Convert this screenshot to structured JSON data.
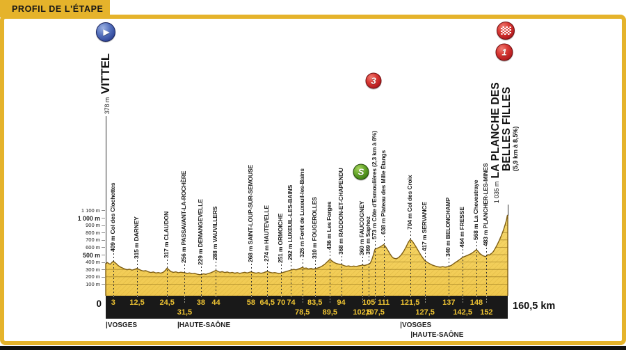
{
  "banner": {
    "title": "PROFIL DE L'ÉTAPE"
  },
  "colors": {
    "accent_yellow": "#E5B32B",
    "profile_fill": "#F0C84E",
    "profile_fill_light": "#F6D96E",
    "profile_edge": "#7E5E14",
    "grid_in_profile": "#C79F2E",
    "bar_background": "#191919",
    "bar_text": "#EFC433",
    "category_red": "#C8242B",
    "sprint_green": "#4E8F1F",
    "start_blue": "#32499B"
  },
  "start": {
    "elevation": "378 m",
    "name": "VITTEL"
  },
  "finish": {
    "elevation": "1 035 m",
    "name_line1": "LA PLANCHE DES",
    "name_line2": "BELLES FILLES",
    "gradient_note": "(5,9 km à 8,5%)"
  },
  "icons": {
    "start_glyph": "▶",
    "cat1_label": "1",
    "cat3_label": "3",
    "sprint_label": "S"
  },
  "yaxis": {
    "zero": "0",
    "labels": [
      {
        "text": "1 100 m",
        "m": 1100,
        "bold": false
      },
      {
        "text": "1 000 m",
        "m": 1000,
        "bold": true
      },
      {
        "text": "900 m",
        "m": 900,
        "bold": false
      },
      {
        "text": "800 m",
        "m": 800,
        "bold": false
      },
      {
        "text": "700 m",
        "m": 700,
        "bold": false
      },
      {
        "text": "600 m",
        "m": 600,
        "bold": false
      },
      {
        "text": "500 m",
        "m": 500,
        "bold": true
      },
      {
        "text": "400 m",
        "m": 400,
        "bold": false
      },
      {
        "text": "300 m",
        "m": 300,
        "bold": false
      },
      {
        "text": "200 m",
        "m": 200,
        "bold": false
      },
      {
        "text": "100 m",
        "m": 100,
        "bold": false
      }
    ]
  },
  "xaxis": {
    "total": "160,5 km",
    "ticks": [
      {
        "label": "3",
        "km": 3,
        "row": 1
      },
      {
        "label": "12,5",
        "km": 12.5,
        "row": 1
      },
      {
        "label": "24,5",
        "km": 24.5,
        "row": 1
      },
      {
        "label": "31,5",
        "km": 31.5,
        "row": 2
      },
      {
        "label": "38",
        "km": 38,
        "row": 1
      },
      {
        "label": "44",
        "km": 44,
        "row": 1
      },
      {
        "label": "58",
        "km": 58,
        "row": 1
      },
      {
        "label": "64,5",
        "km": 64.5,
        "row": 1
      },
      {
        "label": "70",
        "km": 70,
        "row": 1
      },
      {
        "label": "74",
        "km": 74,
        "row": 1
      },
      {
        "label": "78,5",
        "km": 78.5,
        "row": 2
      },
      {
        "label": "83,5",
        "km": 83.5,
        "row": 1
      },
      {
        "label": "89,5",
        "km": 89.5,
        "row": 2
      },
      {
        "label": "94",
        "km": 94,
        "row": 1
      },
      {
        "label": "102,5",
        "km": 102.5,
        "row": 2
      },
      {
        "label": "105",
        "km": 105,
        "row": 1
      },
      {
        "label": "107,5",
        "km": 107.5,
        "row": 2
      },
      {
        "label": "111",
        "km": 111,
        "row": 1
      },
      {
        "label": "121,5",
        "km": 121.5,
        "row": 1
      },
      {
        "label": "127,5",
        "km": 127.5,
        "row": 2
      },
      {
        "label": "137",
        "km": 137,
        "row": 1
      },
      {
        "label": "142,5",
        "km": 142.5,
        "row": 2
      },
      {
        "label": "148",
        "km": 148,
        "row": 1
      },
      {
        "label": "152",
        "km": 152,
        "row": 2
      }
    ]
  },
  "departments": [
    {
      "label": "|VOSGES",
      "km": 0,
      "row": 1
    },
    {
      "label": "|HAUTE-SAÔNE",
      "km": 28.6,
      "row": 1
    },
    {
      "label": "|VOSGES",
      "km": 117.5,
      "row": 1
    },
    {
      "label": "|HAUTE-SAÔNE",
      "km": 121.7,
      "row": 2
    }
  ],
  "chart_data": {
    "type": "area",
    "title": "PROFIL DE L'ÉTAPE",
    "xlabel": "km",
    "ylabel": "m",
    "xlim": [
      0,
      160.5
    ],
    "ylim": [
      0,
      1150
    ],
    "total_distance_km": 160.5,
    "start": {
      "name": "VITTEL",
      "elevation_m": 378,
      "km": 0
    },
    "finish": {
      "name": "LA PLANCHE DES BELLES FILLES",
      "elevation_m": 1035,
      "km": 160.5,
      "climb": "5,9 km à 8,5%",
      "category": "1"
    },
    "waypoints": [
      {
        "km": 3,
        "elev": 409,
        "elev_label": "409 m",
        "name": "Col des Clochettes"
      },
      {
        "km": 12.5,
        "elev": 315,
        "elev_label": "315 m",
        "name": "DARNEY"
      },
      {
        "km": 24.5,
        "elev": 317,
        "elev_label": "317 m",
        "name": "CLAUDON"
      },
      {
        "km": 31.5,
        "elev": 256,
        "elev_label": "256 m",
        "name": "PASSAVANT-LA-ROCHÈRE"
      },
      {
        "km": 38,
        "elev": 229,
        "elev_label": "229 m",
        "name": "DEMANGEVELLE"
      },
      {
        "km": 44,
        "elev": 288,
        "elev_label": "288 m",
        "name": "VAUVILLERS"
      },
      {
        "km": 58,
        "elev": 268,
        "elev_label": "268 m",
        "name": "SAINT-LOUP-SUR-SEMOUSE"
      },
      {
        "km": 64.5,
        "elev": 274,
        "elev_label": "274 m",
        "name": "HAUTEVELLE"
      },
      {
        "km": 70,
        "elev": 251,
        "elev_label": "251 m",
        "name": "ORMOICHE"
      },
      {
        "km": 74,
        "elev": 292,
        "elev_label": "292 m",
        "name": "LUXEUIL-LES-BAINS"
      },
      {
        "km": 78.5,
        "elev": 326,
        "elev_label": "326 m",
        "name": "Forêt de Luxeuil-les-Bains"
      },
      {
        "km": 83.5,
        "elev": 310,
        "elev_label": "310 m",
        "name": "FOUGEROLLES"
      },
      {
        "km": 89.5,
        "elev": 436,
        "elev_label": "436 m",
        "name": "Les Forges"
      },
      {
        "km": 94,
        "elev": 368,
        "elev_label": "368 m",
        "name": "RADDON-ET-CHAPENDU"
      },
      {
        "km": 102.5,
        "elev": 360,
        "elev_label": "360 m",
        "name": "FAUCOGNEY",
        "badge": "sprint"
      },
      {
        "km": 105,
        "elev": 369,
        "elev_label": "369 m",
        "name": "Saphoz"
      },
      {
        "km": 107.5,
        "elev": 573,
        "elev_label": "573 m",
        "name": "Côte d'Esmoulières",
        "suffix": "(2,3 km à 8%)",
        "badge": "cat3"
      },
      {
        "km": 111,
        "elev": 638,
        "elev_label": "638 m",
        "name": "Plateau des Mille Étangs"
      },
      {
        "km": 121.5,
        "elev": 704,
        "elev_label": "704 m",
        "name": "Col des Croix"
      },
      {
        "km": 127.5,
        "elev": 417,
        "elev_label": "417 m",
        "name": "SERVANCE"
      },
      {
        "km": 137,
        "elev": 340,
        "elev_label": "340 m",
        "name": "BELONCHAMP"
      },
      {
        "km": 142.5,
        "elev": 464,
        "elev_label": "464 m",
        "name": "FRESSE"
      },
      {
        "km": 148,
        "elev": 568,
        "elev_label": "568 m",
        "name": "La Chevestraye"
      },
      {
        "km": 152,
        "elev": 483,
        "elev_label": "483 m",
        "name": "PLANCHER-LES-MINES"
      }
    ],
    "profile": [
      [
        0,
        378
      ],
      [
        0.7,
        392
      ],
      [
        1.2,
        380
      ],
      [
        1.8,
        370
      ],
      [
        2.4,
        392
      ],
      [
        3,
        409
      ],
      [
        3.6,
        396
      ],
      [
        4.2,
        378
      ],
      [
        5,
        352
      ],
      [
        6,
        330
      ],
      [
        7.5,
        308
      ],
      [
        8.5,
        296
      ],
      [
        9.5,
        303
      ],
      [
        10.5,
        291
      ],
      [
        11.5,
        300
      ],
      [
        12.5,
        315
      ],
      [
        13.2,
        302
      ],
      [
        14,
        290
      ],
      [
        15,
        278
      ],
      [
        16,
        283
      ],
      [
        17,
        268
      ],
      [
        18,
        258
      ],
      [
        19,
        265
      ],
      [
        20,
        252
      ],
      [
        21,
        258
      ],
      [
        22,
        250
      ],
      [
        23,
        262
      ],
      [
        23.8,
        288
      ],
      [
        24.5,
        317
      ],
      [
        25.2,
        295
      ],
      [
        26,
        272
      ],
      [
        27,
        260
      ],
      [
        28,
        267
      ],
      [
        29,
        256
      ],
      [
        30,
        262
      ],
      [
        31.5,
        256
      ],
      [
        32.5,
        247
      ],
      [
        33.5,
        253
      ],
      [
        34.5,
        242
      ],
      [
        35.5,
        247
      ],
      [
        36.5,
        236
      ],
      [
        37.2,
        230
      ],
      [
        38,
        229
      ],
      [
        39,
        240
      ],
      [
        40,
        234
      ],
      [
        41,
        245
      ],
      [
        42,
        256
      ],
      [
        43,
        272
      ],
      [
        44,
        288
      ],
      [
        44.8,
        274
      ],
      [
        45.6,
        263
      ],
      [
        46.5,
        270
      ],
      [
        47.5,
        258
      ],
      [
        48.5,
        265
      ],
      [
        49.5,
        253
      ],
      [
        50.5,
        259
      ],
      [
        51.5,
        249
      ],
      [
        52.5,
        257
      ],
      [
        53.5,
        247
      ],
      [
        54.5,
        255
      ],
      [
        55.5,
        260
      ],
      [
        56.5,
        252
      ],
      [
        57.2,
        259
      ],
      [
        58,
        268
      ],
      [
        59,
        257
      ],
      [
        60,
        250
      ],
      [
        61,
        257
      ],
      [
        62,
        248
      ],
      [
        63,
        256
      ],
      [
        63.8,
        266
      ],
      [
        64.5,
        274
      ],
      [
        65.5,
        261
      ],
      [
        66.5,
        253
      ],
      [
        67.5,
        258
      ],
      [
        68.5,
        249
      ],
      [
        69.2,
        245
      ],
      [
        70,
        251
      ],
      [
        71,
        261
      ],
      [
        72,
        272
      ],
      [
        73,
        281
      ],
      [
        74,
        292
      ],
      [
        75,
        301
      ],
      [
        76,
        294
      ],
      [
        77,
        308
      ],
      [
        78.5,
        326
      ],
      [
        79.3,
        314
      ],
      [
        80,
        320
      ],
      [
        81,
        306
      ],
      [
        82,
        315
      ],
      [
        82.8,
        304
      ],
      [
        83.5,
        310
      ],
      [
        84.5,
        318
      ],
      [
        85.5,
        330
      ],
      [
        86.5,
        348
      ],
      [
        87.5,
        372
      ],
      [
        88.5,
        405
      ],
      [
        89.5,
        436
      ],
      [
        90.3,
        416
      ],
      [
        91,
        398
      ],
      [
        92,
        381
      ],
      [
        93,
        373
      ],
      [
        94,
        368
      ],
      [
        95,
        354
      ],
      [
        96,
        342
      ],
      [
        97,
        348
      ],
      [
        98,
        338
      ],
      [
        99,
        346
      ],
      [
        100,
        340
      ],
      [
        101,
        348
      ],
      [
        101.8,
        354
      ],
      [
        102.5,
        360
      ],
      [
        103.3,
        353
      ],
      [
        104,
        360
      ],
      [
        105,
        369
      ],
      [
        105.6,
        385
      ],
      [
        106.2,
        430
      ],
      [
        106.8,
        492
      ],
      [
        107.5,
        573
      ],
      [
        108.2,
        585
      ],
      [
        109,
        596
      ],
      [
        110,
        615
      ],
      [
        111,
        638
      ],
      [
        111.8,
        605
      ],
      [
        112.6,
        560
      ],
      [
        113.5,
        510
      ],
      [
        114.3,
        472
      ],
      [
        115,
        452
      ],
      [
        116,
        444
      ],
      [
        117,
        462
      ],
      [
        118,
        498
      ],
      [
        119,
        548
      ],
      [
        120,
        610
      ],
      [
        120.8,
        668
      ],
      [
        121.5,
        704
      ],
      [
        122.3,
        688
      ],
      [
        123,
        652
      ],
      [
        124,
        598
      ],
      [
        125,
        540
      ],
      [
        126,
        484
      ],
      [
        127,
        436
      ],
      [
        127.5,
        417
      ],
      [
        128.5,
        394
      ],
      [
        129.5,
        374
      ],
      [
        130.5,
        358
      ],
      [
        131.5,
        346
      ],
      [
        132.5,
        337
      ],
      [
        133.5,
        331
      ],
      [
        134.5,
        338
      ],
      [
        135.5,
        331
      ],
      [
        136.2,
        335
      ],
      [
        137,
        340
      ],
      [
        138,
        356
      ],
      [
        139,
        380
      ],
      [
        140,
        404
      ],
      [
        141,
        426
      ],
      [
        141.8,
        446
      ],
      [
        142.5,
        464
      ],
      [
        143.5,
        478
      ],
      [
        144.5,
        492
      ],
      [
        145.5,
        508
      ],
      [
        146.3,
        524
      ],
      [
        147.2,
        546
      ],
      [
        148,
        568
      ],
      [
        148.7,
        542
      ],
      [
        149.4,
        514
      ],
      [
        150.2,
        494
      ],
      [
        151,
        480
      ],
      [
        151.6,
        474
      ],
      [
        152,
        483
      ],
      [
        152.6,
        502
      ],
      [
        153.1,
        494
      ],
      [
        153.7,
        510
      ],
      [
        154.3,
        525
      ],
      [
        154.8,
        545
      ],
      [
        155.6,
        592
      ],
      [
        156.4,
        642
      ],
      [
        157.2,
        700
      ],
      [
        158,
        764
      ],
      [
        158.8,
        836
      ],
      [
        159.5,
        912
      ],
      [
        160,
        972
      ],
      [
        160.3,
        1028
      ],
      [
        160.5,
        1035
      ]
    ]
  }
}
